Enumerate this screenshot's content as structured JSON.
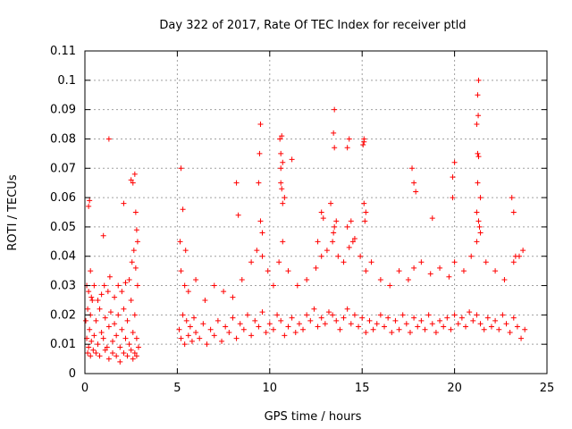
{
  "chart_data": {
    "type": "scatter",
    "title": "Day 322 of 2017, Rate Of TEC Index for receiver ptld",
    "xlabel": "GPS time / hours",
    "ylabel": "ROTI / TECUs",
    "xlim": [
      0,
      25
    ],
    "ylim": [
      0,
      0.11
    ],
    "xticks": [
      "0",
      "5",
      "10",
      "15",
      "20",
      "25"
    ],
    "yticks": [
      "0",
      "0.01",
      "0.02",
      "0.03",
      "0.04",
      "0.05",
      "0.06",
      "0.07",
      "0.08",
      "0.09",
      "0.1",
      "0.11"
    ],
    "grid": true,
    "marker": "+",
    "color": "#ff0000",
    "series": [
      {
        "x": [
          0.05,
          0.1,
          0.15,
          0.2,
          0.25,
          0.3,
          0.35,
          0.4,
          0.5,
          0.6,
          0.7,
          0.8,
          0.9,
          1.0,
          1.1,
          1.2,
          1.3,
          1.4,
          1.5,
          1.6,
          1.7,
          1.8,
          1.9,
          2.0,
          2.1,
          2.2,
          2.3,
          2.4,
          2.5,
          2.6,
          2.7,
          2.8,
          2.9,
          0.1,
          0.2,
          0.3,
          0.35,
          0.5,
          0.7,
          0.9,
          1.05,
          1.25,
          1.35,
          1.6,
          1.8,
          2.0,
          2.2,
          2.4,
          2.55,
          2.65,
          2.75,
          2.85,
          0.15,
          0.3,
          0.45,
          0.6,
          0.8,
          1.1,
          1.3,
          1.5,
          1.7,
          1.9,
          2.1,
          2.3,
          2.5,
          2.6,
          2.7,
          2.8,
          0.2,
          0.25,
          1.0,
          1.3,
          2.1,
          2.5,
          2.6,
          2.7,
          2.75,
          2.8,
          2.85,
          5.1,
          5.2,
          5.3,
          5.4,
          5.5,
          5.6,
          5.7,
          5.8,
          5.9,
          6.0,
          6.2,
          6.4,
          6.6,
          6.8,
          7.0,
          7.2,
          7.4,
          7.6,
          7.8,
          8.0,
          8.2,
          8.4,
          8.6,
          8.8,
          9.0,
          9.2,
          9.4,
          9.6,
          9.8,
          10.0,
          10.2,
          10.4,
          10.6,
          10.8,
          11.0,
          11.2,
          11.4,
          11.6,
          11.8,
          12.0,
          12.2,
          12.4,
          12.6,
          12.8,
          13.0,
          13.2,
          13.4,
          13.6,
          13.8,
          14.0,
          14.2,
          14.4,
          14.6,
          14.8,
          15.0,
          15.2,
          15.4,
          15.6,
          15.8,
          16.0,
          16.2,
          16.4,
          16.6,
          16.8,
          17.0,
          17.2,
          17.4,
          17.6,
          17.8,
          18.0,
          18.2,
          18.4,
          18.6,
          18.8,
          19.0,
          19.2,
          19.4,
          19.6,
          19.8,
          20.0,
          20.2,
          20.4,
          20.6,
          20.8,
          21.0,
          21.2,
          21.4,
          21.6,
          21.8,
          22.0,
          22.2,
          22.4,
          22.6,
          22.8,
          23.0,
          23.2,
          23.4,
          23.6,
          23.8,
          5.2,
          5.4,
          5.6,
          6.0,
          6.5,
          7.0,
          7.5,
          8.0,
          8.5,
          9.0,
          9.3,
          9.6,
          9.9,
          10.2,
          10.5,
          10.7,
          11.0,
          11.5,
          12.0,
          12.5,
          12.8,
          13.1,
          13.4,
          13.7,
          14.0,
          14.3,
          14.6,
          14.9,
          15.2,
          15.5,
          16.0,
          16.5,
          17.0,
          17.5,
          17.8,
          18.2,
          18.7,
          19.2,
          19.7,
          20.0,
          20.5,
          20.9,
          21.2,
          21.4,
          21.7,
          22.2,
          22.7,
          23.2,
          23.5,
          23.7,
          5.15,
          5.3,
          5.45,
          8.2,
          8.3,
          9.4,
          9.5,
          9.6,
          10.6,
          10.65,
          10.7,
          10.8,
          12.6,
          12.8,
          12.9,
          13.3,
          13.45,
          13.5,
          13.6,
          14.2,
          14.4,
          14.5,
          15.1,
          15.15,
          15.2,
          17.8,
          17.9,
          18.8,
          19.9,
          20.0,
          21.2,
          21.25,
          21.3,
          21.35,
          21.4,
          23.1,
          23.2,
          23.3,
          9.45,
          9.5,
          10.55,
          10.6,
          10.7,
          13.45,
          13.5,
          14.3,
          15.05,
          15.1,
          21.2,
          21.25,
          21.3,
          21.28,
          5.2,
          10.6,
          10.65,
          11.2,
          13.5,
          14.2,
          15.1,
          17.7,
          19.9,
          21.25,
          21.3
        ],
        "y": [
          0.018,
          0.012,
          0.022,
          0.009,
          0.015,
          0.02,
          0.011,
          0.025,
          0.013,
          0.018,
          0.01,
          0.022,
          0.014,
          0.012,
          0.019,
          0.009,
          0.016,
          0.021,
          0.011,
          0.017,
          0.013,
          0.02,
          0.009,
          0.015,
          0.022,
          0.012,
          0.018,
          0.01,
          0.025,
          0.014,
          0.02,
          0.012,
          0.009,
          0.03,
          0.028,
          0.035,
          0.026,
          0.03,
          0.025,
          0.027,
          0.03,
          0.028,
          0.033,
          0.026,
          0.03,
          0.028,
          0.031,
          0.032,
          0.038,
          0.042,
          0.036,
          0.03,
          0.007,
          0.006,
          0.008,
          0.007,
          0.006,
          0.008,
          0.005,
          0.007,
          0.006,
          0.004,
          0.007,
          0.006,
          0.008,
          0.005,
          0.007,
          0.006,
          0.057,
          0.059,
          0.047,
          0.08,
          0.058,
          0.066,
          0.065,
          0.068,
          0.055,
          0.049,
          0.045,
          0.015,
          0.012,
          0.02,
          0.01,
          0.018,
          0.013,
          0.016,
          0.011,
          0.019,
          0.014,
          0.012,
          0.017,
          0.01,
          0.015,
          0.013,
          0.018,
          0.011,
          0.016,
          0.014,
          0.019,
          0.012,
          0.017,
          0.015,
          0.02,
          0.013,
          0.018,
          0.016,
          0.021,
          0.014,
          0.017,
          0.015,
          0.02,
          0.018,
          0.013,
          0.016,
          0.019,
          0.014,
          0.017,
          0.015,
          0.02,
          0.018,
          0.022,
          0.016,
          0.019,
          0.017,
          0.021,
          0.02,
          0.018,
          0.015,
          0.019,
          0.022,
          0.017,
          0.02,
          0.016,
          0.019,
          0.014,
          0.018,
          0.015,
          0.017,
          0.02,
          0.016,
          0.019,
          0.014,
          0.018,
          0.015,
          0.02,
          0.017,
          0.014,
          0.019,
          0.016,
          0.018,
          0.015,
          0.02,
          0.017,
          0.014,
          0.018,
          0.016,
          0.019,
          0.015,
          0.02,
          0.017,
          0.019,
          0.016,
          0.021,
          0.018,
          0.02,
          0.017,
          0.015,
          0.019,
          0.016,
          0.018,
          0.015,
          0.02,
          0.017,
          0.014,
          0.019,
          0.016,
          0.012,
          0.015,
          0.035,
          0.03,
          0.028,
          0.032,
          0.025,
          0.03,
          0.028,
          0.026,
          0.032,
          0.038,
          0.042,
          0.04,
          0.035,
          0.03,
          0.038,
          0.045,
          0.035,
          0.03,
          0.032,
          0.036,
          0.04,
          0.042,
          0.045,
          0.04,
          0.038,
          0.043,
          0.046,
          0.04,
          0.035,
          0.038,
          0.032,
          0.03,
          0.035,
          0.032,
          0.036,
          0.038,
          0.034,
          0.036,
          0.033,
          0.038,
          0.035,
          0.04,
          0.045,
          0.048,
          0.038,
          0.035,
          0.032,
          0.038,
          0.04,
          0.042,
          0.045,
          0.056,
          0.042,
          0.065,
          0.054,
          0.065,
          0.052,
          0.048,
          0.065,
          0.063,
          0.058,
          0.06,
          0.045,
          0.055,
          0.053,
          0.058,
          0.048,
          0.05,
          0.052,
          0.05,
          0.052,
          0.045,
          0.058,
          0.052,
          0.055,
          0.065,
          0.062,
          0.053,
          0.06,
          0.072,
          0.055,
          0.065,
          0.052,
          0.05,
          0.06,
          0.06,
          0.055,
          0.04,
          0.075,
          0.085,
          0.08,
          0.075,
          0.072,
          0.082,
          0.09,
          0.08,
          0.078,
          0.079,
          0.085,
          0.095,
          0.1,
          0.088,
          0.07,
          0.07,
          0.081,
          0.073,
          0.077,
          0.077,
          0.08,
          0.07,
          0.067,
          0.075,
          0.074
        ]
      }
    ]
  }
}
